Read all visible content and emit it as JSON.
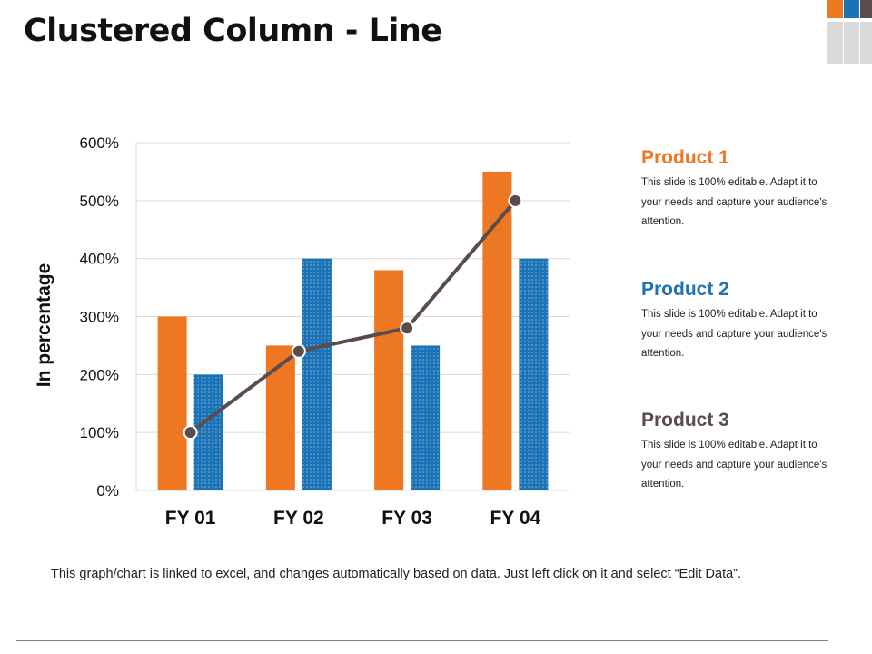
{
  "page": {
    "title": "Clustered Column - Line"
  },
  "deco": {
    "colors": [
      "#ee7721",
      "#1b72b5",
      "#5a4c4c",
      "#d9d9d9"
    ]
  },
  "chart_data": {
    "type": "bar",
    "title": "",
    "xlabel": "",
    "ylabel": "In percentage",
    "categories": [
      "FY 01",
      "FY 02",
      "FY 03",
      "FY 04"
    ],
    "ylim": [
      0,
      600
    ],
    "yticks": [
      0,
      100,
      200,
      300,
      400,
      500,
      600
    ],
    "ytick_labels": [
      "0%",
      "100%",
      "200%",
      "300%",
      "400%",
      "500%",
      "600%"
    ],
    "grid": true,
    "series": [
      {
        "name": "Product 1",
        "type": "bar",
        "color": "#ee7721",
        "values": [
          300,
          250,
          380,
          550
        ]
      },
      {
        "name": "Product 2",
        "type": "bar",
        "color": "#1b72b5",
        "pattern": "dotted",
        "values": [
          200,
          400,
          250,
          400
        ]
      },
      {
        "name": "Product 3",
        "type": "line",
        "color": "#5a4c4c",
        "values": [
          100,
          240,
          280,
          500
        ]
      }
    ]
  },
  "legend": [
    {
      "name": "Product 1",
      "color": "#ee7721",
      "desc_lines": [
        "This slide is 100% editable. Adapt it to",
        "your needs and capture your audience's",
        "attention."
      ]
    },
    {
      "name": "Product 2",
      "color": "#1b72b5",
      "desc_lines": [
        "This slide is 100% editable. Adapt it to",
        "your needs and capture your audience's",
        "attention."
      ]
    },
    {
      "name": "Product 3",
      "color": "#5a4c4c",
      "desc_lines": [
        "This slide is 100% editable. Adapt it to",
        "your needs and capture your audience's",
        "attention."
      ]
    }
  ],
  "footnote": "This graph/chart is linked to excel, and changes automatically based on data. Just left click on it and select “Edit Data”."
}
